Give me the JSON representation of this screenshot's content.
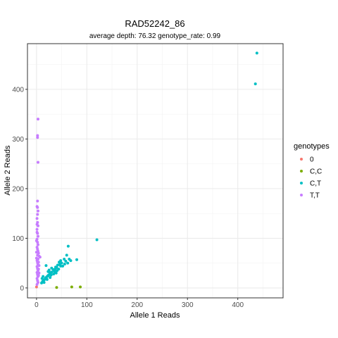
{
  "chart_data": {
    "type": "scatter",
    "title": "RAD52242_86",
    "subtitle": "average depth:  76.32  genotype_rate:  0.99",
    "xlabel": "Allele 1 Reads",
    "ylabel": "Allele 2 Reads",
    "xlim": [
      -18,
      490
    ],
    "ylim": [
      -20,
      492
    ],
    "x_ticks": [
      0,
      100,
      200,
      300,
      400
    ],
    "y_ticks": [
      0,
      100,
      200,
      300,
      400
    ],
    "grid": true,
    "legend": {
      "title": "genotypes",
      "position": "right"
    },
    "series": [
      {
        "name": "0",
        "color": "#F8766D",
        "points": [
          [
            0,
            2
          ]
        ]
      },
      {
        "name": "C,C",
        "color": "#7CAE00",
        "points": [
          [
            40,
            1
          ],
          [
            70,
            2
          ],
          [
            87,
            2
          ]
        ]
      },
      {
        "name": "C,T",
        "color": "#00BFC4",
        "points": [
          [
            438,
            473
          ],
          [
            435,
            411
          ],
          [
            120,
            97
          ],
          [
            63,
            84
          ],
          [
            80,
            57
          ],
          [
            60,
            66
          ],
          [
            55,
            58
          ],
          [
            50,
            50
          ],
          [
            48,
            44
          ],
          [
            45,
            52
          ],
          [
            42,
            46
          ],
          [
            40,
            41
          ],
          [
            37,
            38
          ],
          [
            35,
            34
          ],
          [
            33,
            37
          ],
          [
            30,
            32
          ],
          [
            28,
            29
          ],
          [
            26,
            31
          ],
          [
            24,
            26
          ],
          [
            22,
            24
          ],
          [
            20,
            22
          ],
          [
            18,
            20
          ],
          [
            16,
            17
          ],
          [
            14,
            15
          ],
          [
            12,
            13
          ],
          [
            10,
            10
          ],
          [
            19,
            45
          ],
          [
            25,
            36
          ],
          [
            30,
            40
          ],
          [
            34,
            28
          ],
          [
            38,
            42
          ],
          [
            41,
            35
          ],
          [
            44,
            38
          ],
          [
            46,
            47
          ],
          [
            48,
            55
          ],
          [
            52,
            44
          ],
          [
            56,
            48
          ],
          [
            58,
            54
          ],
          [
            62,
            50
          ],
          [
            65,
            58
          ],
          [
            68,
            55
          ],
          [
            39,
            30
          ],
          [
            27,
            21
          ],
          [
            21,
            17
          ],
          [
            15,
            11
          ],
          [
            11,
            19
          ],
          [
            13,
            23
          ],
          [
            23,
            33
          ],
          [
            29,
            26
          ],
          [
            36,
            33
          ]
        ]
      },
      {
        "name": "T,T",
        "color": "#C77CFF",
        "points": [
          [
            3,
            340
          ],
          [
            2,
            307
          ],
          [
            2,
            303
          ],
          [
            3,
            253
          ],
          [
            2,
            175
          ],
          [
            2,
            162
          ],
          [
            3,
            155
          ],
          [
            2,
            148
          ],
          [
            1,
            140
          ],
          [
            2,
            132
          ],
          [
            3,
            125
          ],
          [
            1,
            118
          ],
          [
            2,
            110
          ],
          [
            3,
            104
          ],
          [
            1,
            98
          ],
          [
            2,
            92
          ],
          [
            3,
            87
          ],
          [
            1,
            82
          ],
          [
            2,
            78
          ],
          [
            3,
            74
          ],
          [
            4,
            70
          ],
          [
            2,
            66
          ],
          [
            5,
            64
          ],
          [
            7,
            62
          ],
          [
            3,
            58
          ],
          [
            1,
            55
          ],
          [
            2,
            51
          ],
          [
            3,
            47
          ],
          [
            1,
            43
          ],
          [
            2,
            39
          ],
          [
            3,
            35
          ],
          [
            1,
            31
          ],
          [
            2,
            27
          ],
          [
            3,
            23
          ],
          [
            1,
            19
          ],
          [
            2,
            15
          ],
          [
            3,
            11
          ],
          [
            1,
            7
          ],
          [
            4,
            52
          ],
          [
            5,
            45
          ],
          [
            4,
            38
          ],
          [
            5,
            30
          ],
          [
            4,
            25
          ],
          [
            1,
            164
          ],
          [
            1,
            128
          ],
          [
            1,
            112
          ],
          [
            0,
            95
          ],
          [
            0,
            72
          ],
          [
            0,
            60
          ]
        ]
      }
    ]
  }
}
